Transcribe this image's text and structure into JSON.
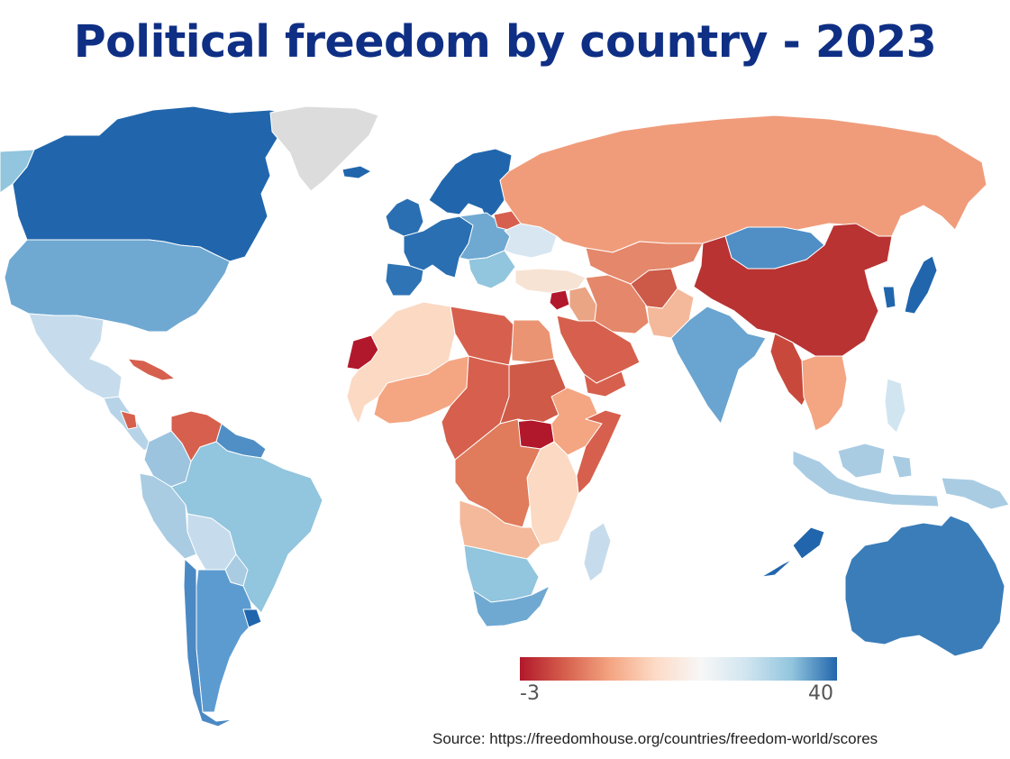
{
  "title": "Political freedom by country - 2023",
  "legend": {
    "min_label": "-3",
    "max_label": "40",
    "colors": [
      "#b2182b",
      "#d6604d",
      "#f4a582",
      "#fddbc7",
      "#f7f7f7",
      "#d1e5f0",
      "#92c5de",
      "#2166ac"
    ]
  },
  "source": "Source: https://freedomhouse.org/countries/freedom-world/scores",
  "no_data_color": "#dcdcdc",
  "regions": [
    {
      "id": "alaska",
      "color": "#92c5de"
    },
    {
      "id": "canada",
      "color": "#2166ac"
    },
    {
      "id": "greenland",
      "color": "#dcdcdc"
    },
    {
      "id": "united-states",
      "color": "#6fa9d2"
    },
    {
      "id": "mexico",
      "color": "#c6dcec"
    },
    {
      "id": "central-america",
      "color": "#b7d3e8"
    },
    {
      "id": "nicaragua",
      "color": "#d6604d"
    },
    {
      "id": "cuba",
      "color": "#d6604d"
    },
    {
      "id": "venezuela",
      "color": "#d6604d"
    },
    {
      "id": "colombia",
      "color": "#9cc4df"
    },
    {
      "id": "guyana",
      "color": "#4f8fc6"
    },
    {
      "id": "peru",
      "color": "#a9cce3"
    },
    {
      "id": "bolivia",
      "color": "#c6dcec"
    },
    {
      "id": "brazil",
      "color": "#92c5de"
    },
    {
      "id": "paraguay",
      "color": "#a9cce3"
    },
    {
      "id": "argentina",
      "color": "#5b9bd0"
    },
    {
      "id": "chile",
      "color": "#4a89c4"
    },
    {
      "id": "uruguay",
      "color": "#2166ac"
    },
    {
      "id": "iceland",
      "color": "#2166ac"
    },
    {
      "id": "scandinavia",
      "color": "#2166ac"
    },
    {
      "id": "uk-ireland",
      "color": "#2a6fb2"
    },
    {
      "id": "western-europe",
      "color": "#2a6fb2"
    },
    {
      "id": "iberia",
      "color": "#2f74b5"
    },
    {
      "id": "eastern-europe",
      "color": "#6fa9d2"
    },
    {
      "id": "belarus",
      "color": "#d6604d"
    },
    {
      "id": "balkans",
      "color": "#92c5de"
    },
    {
      "id": "ukraine",
      "color": "#d8e6f1"
    },
    {
      "id": "russia",
      "color": "#f09c7b"
    },
    {
      "id": "turkey",
      "color": "#f7e3d4"
    },
    {
      "id": "syria",
      "color": "#b2182b"
    },
    {
      "id": "iraq",
      "color": "#eaa585"
    },
    {
      "id": "iran",
      "color": "#e5876a"
    },
    {
      "id": "central-asia",
      "color": "#e5876a"
    },
    {
      "id": "afghanistan",
      "color": "#cd5a48"
    },
    {
      "id": "pakistan",
      "color": "#f4b99a"
    },
    {
      "id": "arabia",
      "color": "#d6604d"
    },
    {
      "id": "yemen",
      "color": "#d6604d"
    },
    {
      "id": "india",
      "color": "#6aa4d0"
    },
    {
      "id": "mongolia",
      "color": "#4f8fc6"
    },
    {
      "id": "china",
      "color": "#b83332"
    },
    {
      "id": "korea-japan",
      "color": "#2166ac"
    },
    {
      "id": "myanmar",
      "color": "#c8493c"
    },
    {
      "id": "se-asia",
      "color": "#f4a582"
    },
    {
      "id": "philippines",
      "color": "#d1e5f0"
    },
    {
      "id": "indonesia",
      "color": "#a9cce3"
    },
    {
      "id": "papua",
      "color": "#a9cce3"
    },
    {
      "id": "australia",
      "color": "#3a7db9"
    },
    {
      "id": "new-zealand",
      "color": "#2166ac"
    },
    {
      "id": "western-sahara",
      "color": "#b2182b"
    },
    {
      "id": "west-africa",
      "color": "#fbd9c3"
    },
    {
      "id": "algeria-libya",
      "color": "#d6604d"
    },
    {
      "id": "egypt",
      "color": "#eb9473"
    },
    {
      "id": "sahel",
      "color": "#f4a582"
    },
    {
      "id": "central-africa",
      "color": "#d6604d"
    },
    {
      "id": "sudan",
      "color": "#cf5a47"
    },
    {
      "id": "south-sudan",
      "color": "#b2182b"
    },
    {
      "id": "ethiopia",
      "color": "#f4a582"
    },
    {
      "id": "somalia",
      "color": "#d6604d"
    },
    {
      "id": "east-africa",
      "color": "#fbd9c3"
    },
    {
      "id": "congo",
      "color": "#e07b5c"
    },
    {
      "id": "angola",
      "color": "#f4b99a"
    },
    {
      "id": "southern-africa",
      "color": "#92c5de"
    },
    {
      "id": "south-africa",
      "color": "#6fa9d2"
    },
    {
      "id": "madagascar",
      "color": "#c6dcec"
    }
  ]
}
